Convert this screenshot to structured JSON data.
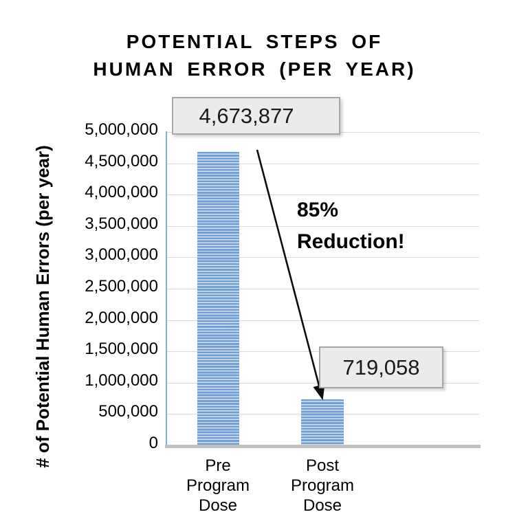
{
  "title": {
    "lines": [
      "POTENTIAL STEPS OF",
      "HUMAN ERROR (PER YEAR)"
    ]
  },
  "annotation": {
    "lines": [
      "85%",
      "Reduction!"
    ]
  },
  "chart_data": {
    "type": "bar",
    "title": "POTENTIAL STEPS OF HUMAN ERROR (PER YEAR)",
    "categories": [
      "Pre Program Dose",
      "Post Program Dose"
    ],
    "category_lines": [
      [
        "Pre",
        "Program",
        "Dose"
      ],
      [
        "Post",
        "Program",
        "Dose"
      ]
    ],
    "values": [
      4673877,
      719058
    ],
    "value_labels": [
      "4,673,877",
      "719,058"
    ],
    "xlabel": "",
    "ylabel": "# of Potential Human Errors (per year)",
    "ylim": [
      0,
      5000000
    ],
    "ytick_step": 500000,
    "ytick_labels": [
      "0",
      "500,000",
      "1,000,000",
      "1,500,000",
      "2,000,000",
      "2,500,000",
      "3,000,000",
      "3,500,000",
      "4,000,000",
      "4,500,000",
      "5,000,000"
    ],
    "grid": true,
    "legend": false,
    "annotation_text": "85% Reduction!",
    "bar_pattern": "horizontal-stripes"
  },
  "colors": {
    "bar_stripe_dark": "#6f9fd5",
    "bar_stripe_light": "#d6e3f2",
    "y_axis_line": "#85acdb",
    "x_axis_line": "#c1c1c1",
    "gridline": "#d9d9d9",
    "label_box_fill": "#ebebeb",
    "label_box_border": "#a6a6a6",
    "arrow": "#0d0d0d",
    "text": "#000000"
  }
}
